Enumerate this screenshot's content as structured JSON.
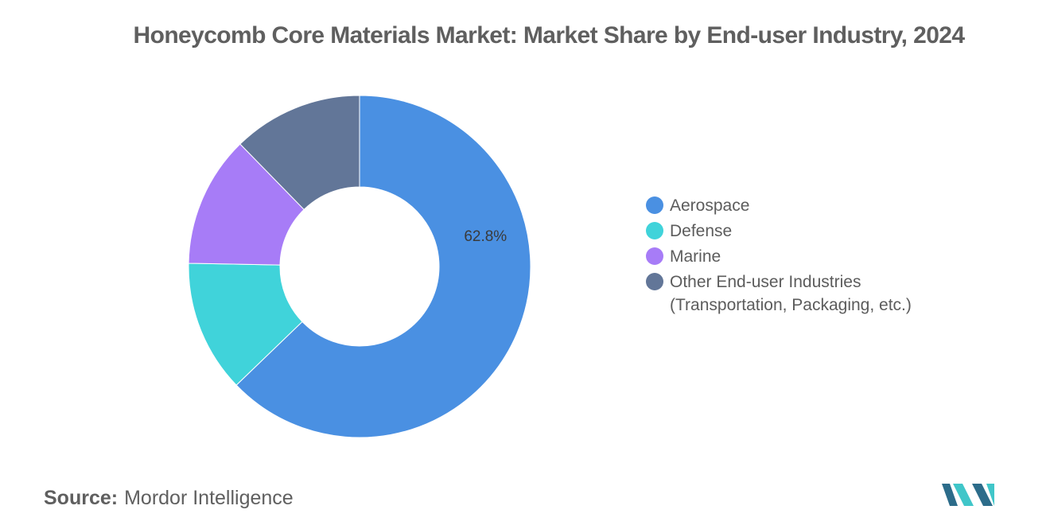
{
  "title": "Honeycomb Core Materials Market: Market Share by End-user Industry, 2024",
  "chart_data": {
    "type": "pie",
    "variant": "donut",
    "title": "Honeycomb Core Materials Market: Market Share by End-user Industry, 2024",
    "categories": [
      "Aerospace",
      "Defense",
      "Marine",
      "Other End-user Industries (Transportation, Packaging, etc.)"
    ],
    "values": [
      62.8,
      12.5,
      12.4,
      12.3
    ],
    "colors": [
      "#4a90e2",
      "#40d3da",
      "#a77cf7",
      "#627698"
    ],
    "data_labels": [
      "62.8%",
      "",
      "",
      ""
    ],
    "legend_position": "right",
    "start_angle_deg": 0,
    "direction": "clockwise"
  },
  "legend": [
    {
      "label": "Aerospace",
      "color": "#4a90e2"
    },
    {
      "label": "Defense",
      "color": "#40d3da"
    },
    {
      "label": "Marine",
      "color": "#a77cf7"
    },
    {
      "label": "Other End-user Industries (Transportation, Packaging, etc.)",
      "color": "#627698"
    }
  ],
  "source": {
    "label": "Source:",
    "text": "Mordor Intelligence"
  },
  "logo": {
    "icon": "mordor-intelligence-logo",
    "colors": [
      "#2c6c8a",
      "#40c6c9"
    ]
  }
}
